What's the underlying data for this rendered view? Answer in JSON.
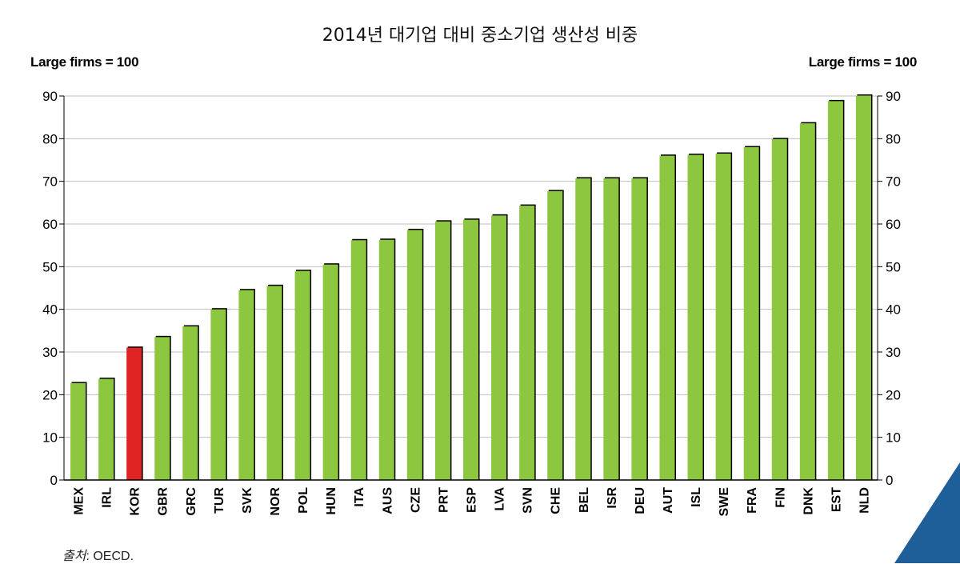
{
  "title": "2014년 대기업 대비 중소기업 생산성 비중",
  "unit_left": "Large firms = 100",
  "unit_right": "Large firms = 100",
  "source_label": "출처",
  "source_text": ": OECD.",
  "colors": {
    "bar": "#8DC63F",
    "highlight": "#E02424",
    "corner_accent": "#1F5F99",
    "grid": "#BFBFBF"
  },
  "chart_data": {
    "type": "bar",
    "categories": [
      "MEX",
      "IRL",
      "KOR",
      "GBR",
      "GRC",
      "TUR",
      "SVK",
      "NOR",
      "POL",
      "HUN",
      "ITA",
      "AUS",
      "CZE",
      "PRT",
      "ESP",
      "LVA",
      "SVN",
      "CHE",
      "BEL",
      "ISR",
      "DEU",
      "AUT",
      "ISL",
      "SWE",
      "FRA",
      "FIN",
      "DNK",
      "EST",
      "NLD"
    ],
    "values": [
      22.7,
      23.7,
      31.0,
      33.5,
      36.0,
      40.0,
      44.5,
      45.5,
      49.0,
      50.5,
      56.2,
      56.3,
      58.6,
      60.6,
      61.0,
      62.0,
      64.3,
      67.7,
      70.7,
      70.7,
      70.7,
      76.0,
      76.2,
      76.5,
      78.0,
      79.9,
      83.6,
      88.8,
      90.1
    ],
    "highlight": [
      "KOR"
    ],
    "ylim": [
      0,
      90
    ],
    "yticks": [
      0,
      10,
      20,
      30,
      40,
      50,
      60,
      70,
      80,
      90
    ],
    "grid": true,
    "ylabel_left": "Large firms = 100",
    "ylabel_right": "Large firms = 100"
  }
}
